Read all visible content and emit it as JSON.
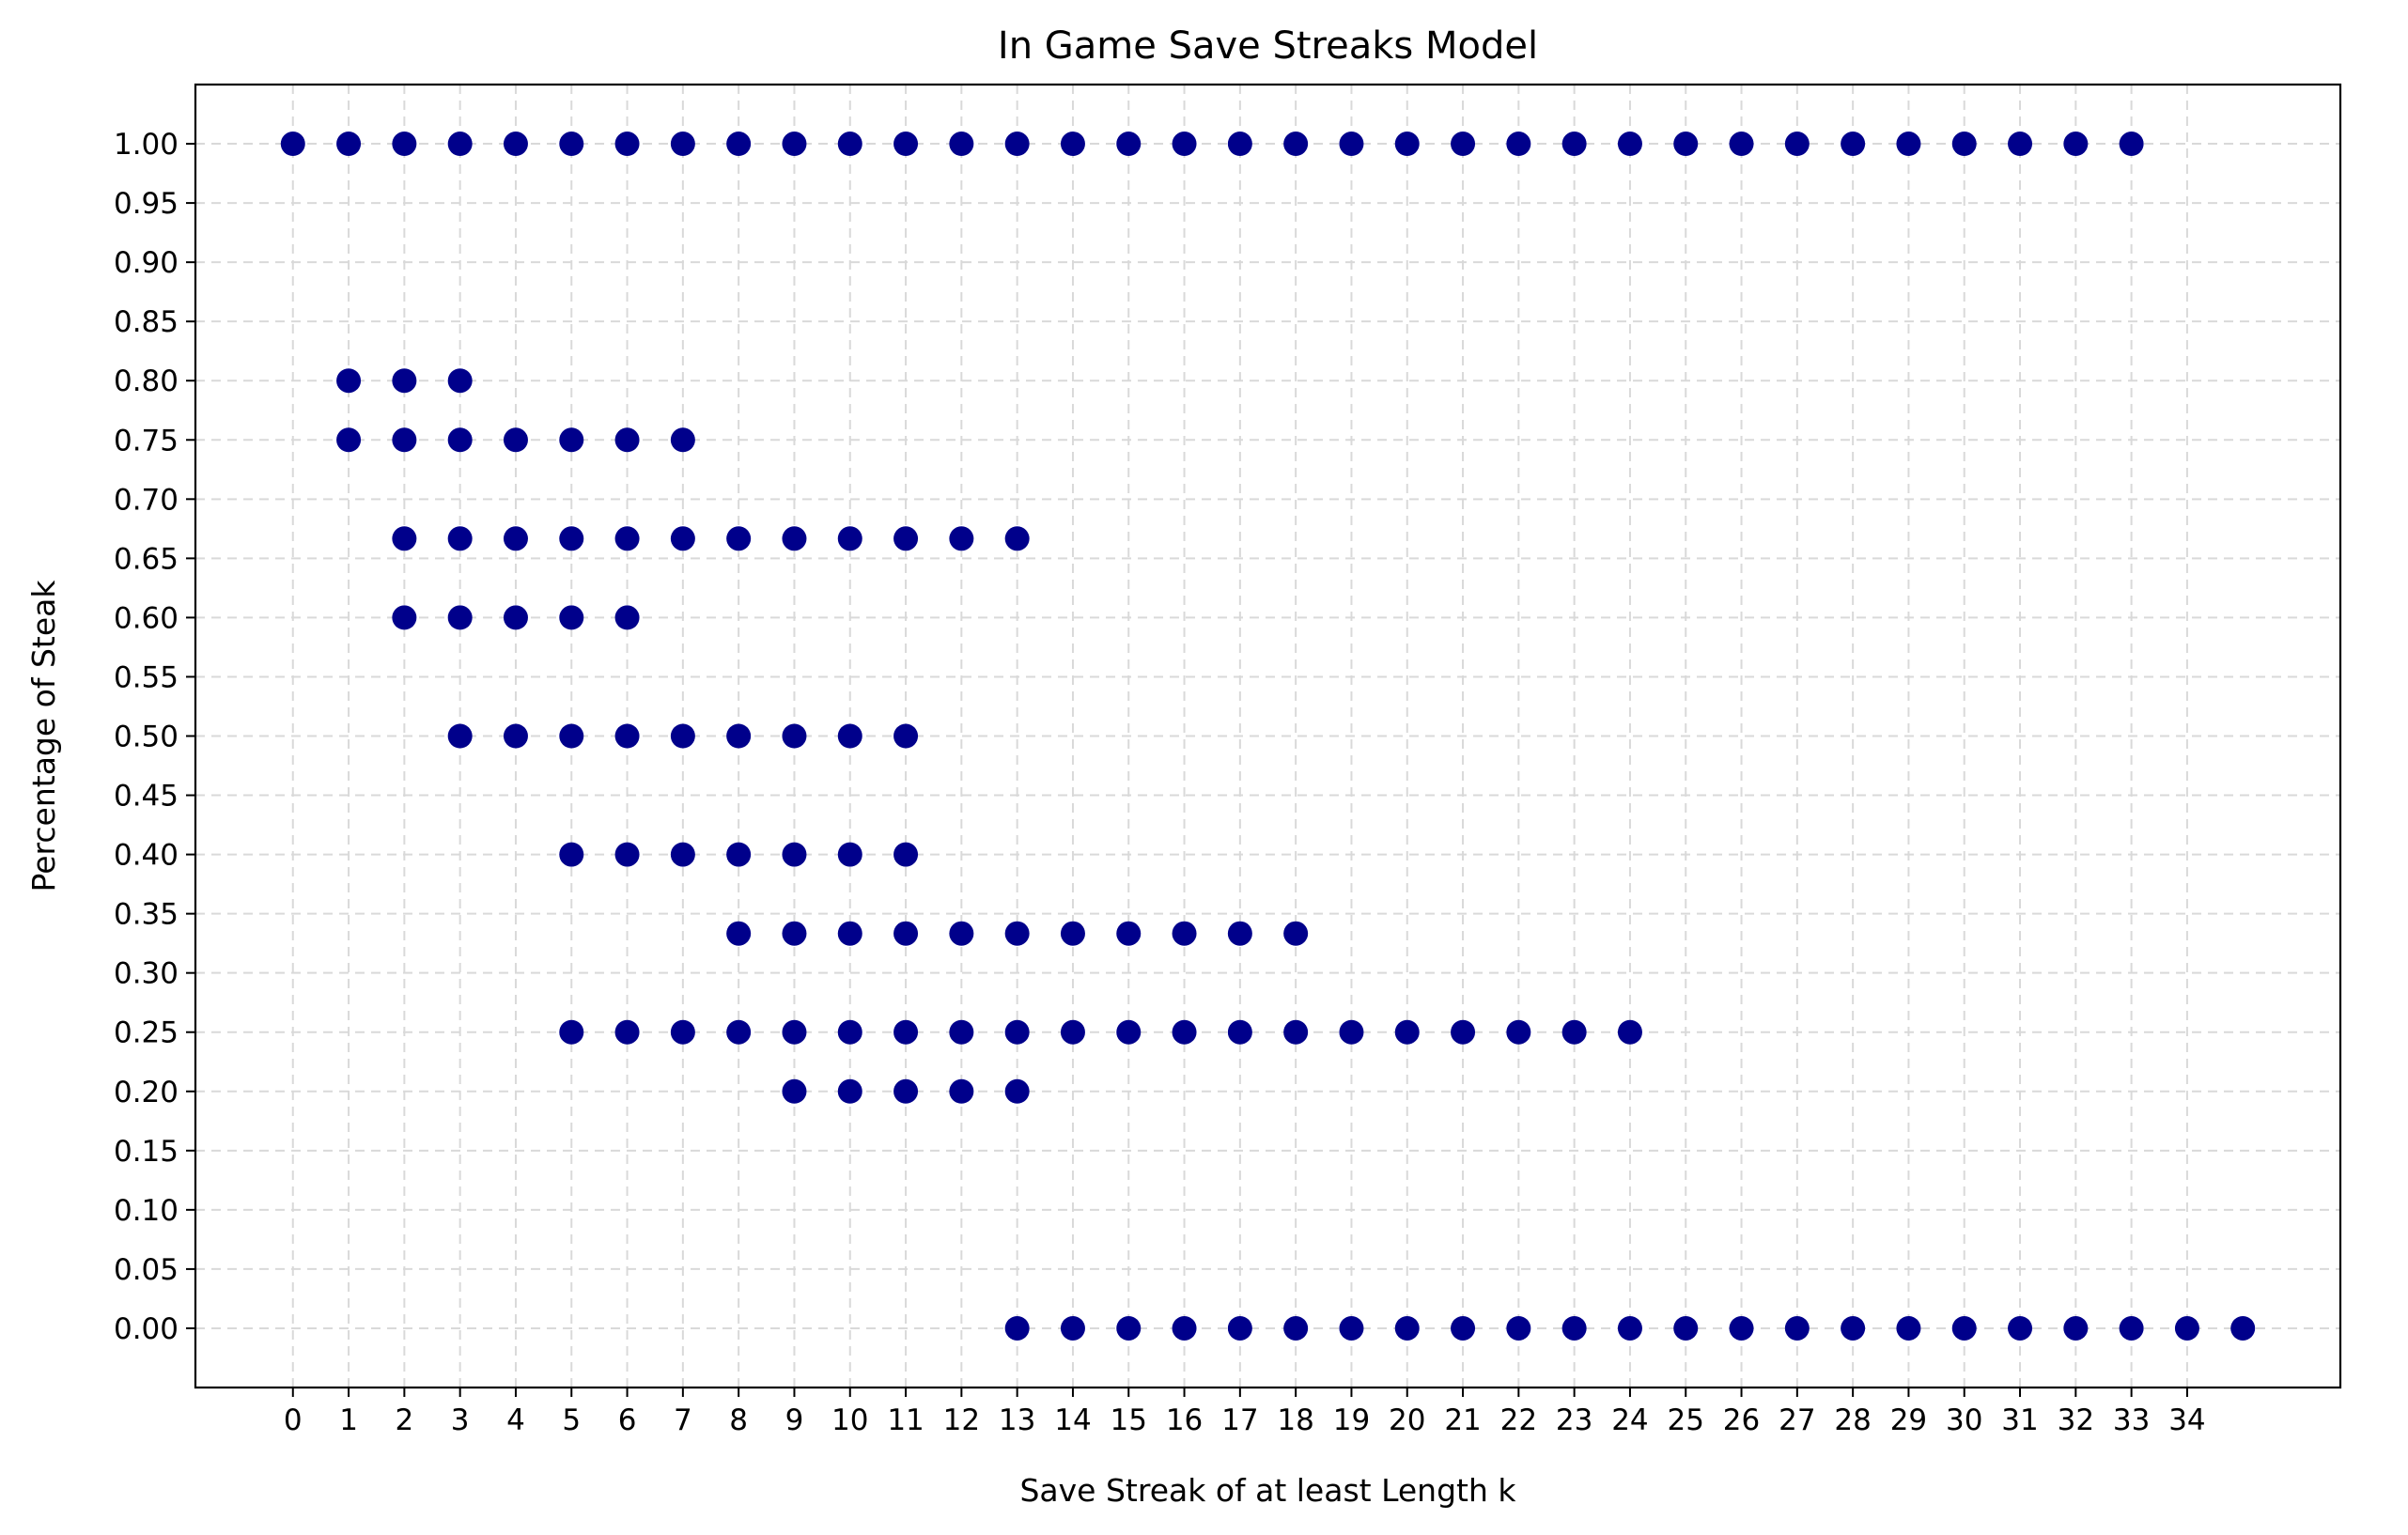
{
  "chart_data": {
    "type": "scatter",
    "title": "In Game Save Streaks Model",
    "xlabel": "Save Streak of at least Length k",
    "ylabel": "Percentage of Steak",
    "xlim": [
      -1.75,
      36.75
    ],
    "ylim": [
      -0.05,
      1.05
    ],
    "x_ticks": [
      0,
      1,
      2,
      3,
      4,
      5,
      6,
      7,
      8,
      9,
      10,
      11,
      12,
      13,
      14,
      15,
      16,
      17,
      18,
      19,
      20,
      21,
      22,
      23,
      24,
      25,
      26,
      27,
      28,
      29,
      30,
      31,
      32,
      33,
      34
    ],
    "y_ticks": [
      "0.00",
      "0.05",
      "0.10",
      "0.15",
      "0.20",
      "0.25",
      "0.30",
      "0.35",
      "0.40",
      "0.45",
      "0.50",
      "0.55",
      "0.60",
      "0.65",
      "0.70",
      "0.75",
      "0.80",
      "0.85",
      "0.90",
      "0.95",
      "1.00"
    ],
    "grid": true,
    "marker_color": "#00008b",
    "series": [
      {
        "y": 1.0,
        "x": [
          0,
          1,
          2,
          3,
          4,
          5,
          6,
          7,
          8,
          9,
          10,
          11,
          12,
          13,
          14,
          15,
          16,
          17,
          18,
          19,
          20,
          21,
          22,
          23,
          24,
          25,
          26,
          27,
          28,
          29,
          30,
          31,
          32,
          33
        ]
      },
      {
        "y": 0.8,
        "x": [
          1,
          2,
          3
        ]
      },
      {
        "y": 0.75,
        "x": [
          1,
          2,
          3,
          4,
          5,
          6,
          7
        ]
      },
      {
        "y": 0.6667,
        "x": [
          2,
          3,
          4,
          5,
          6,
          7,
          8,
          9,
          10,
          11,
          12,
          13
        ]
      },
      {
        "y": 0.6,
        "x": [
          2,
          3,
          4,
          5,
          6
        ]
      },
      {
        "y": 0.5,
        "x": [
          3,
          4,
          5,
          6,
          7,
          8,
          9,
          10,
          11
        ]
      },
      {
        "y": 0.4,
        "x": [
          5,
          6,
          7,
          8,
          9,
          10,
          11
        ]
      },
      {
        "y": 0.3333,
        "x": [
          8,
          9,
          10,
          11,
          12,
          13,
          14,
          15,
          16,
          17,
          18
        ]
      },
      {
        "y": 0.25,
        "x": [
          5,
          6,
          7,
          8,
          9,
          10,
          11,
          12,
          13,
          14,
          15,
          16,
          17,
          18,
          19,
          20,
          21,
          22,
          23,
          24
        ]
      },
      {
        "y": 0.2,
        "x": [
          9,
          10,
          11,
          12,
          13
        ]
      },
      {
        "y": 0.0,
        "x": [
          13,
          14,
          15,
          16,
          17,
          18,
          19,
          20,
          21,
          22,
          23,
          24,
          25,
          26,
          27,
          28,
          29,
          30,
          31,
          32,
          33,
          34,
          35
        ]
      }
    ]
  }
}
